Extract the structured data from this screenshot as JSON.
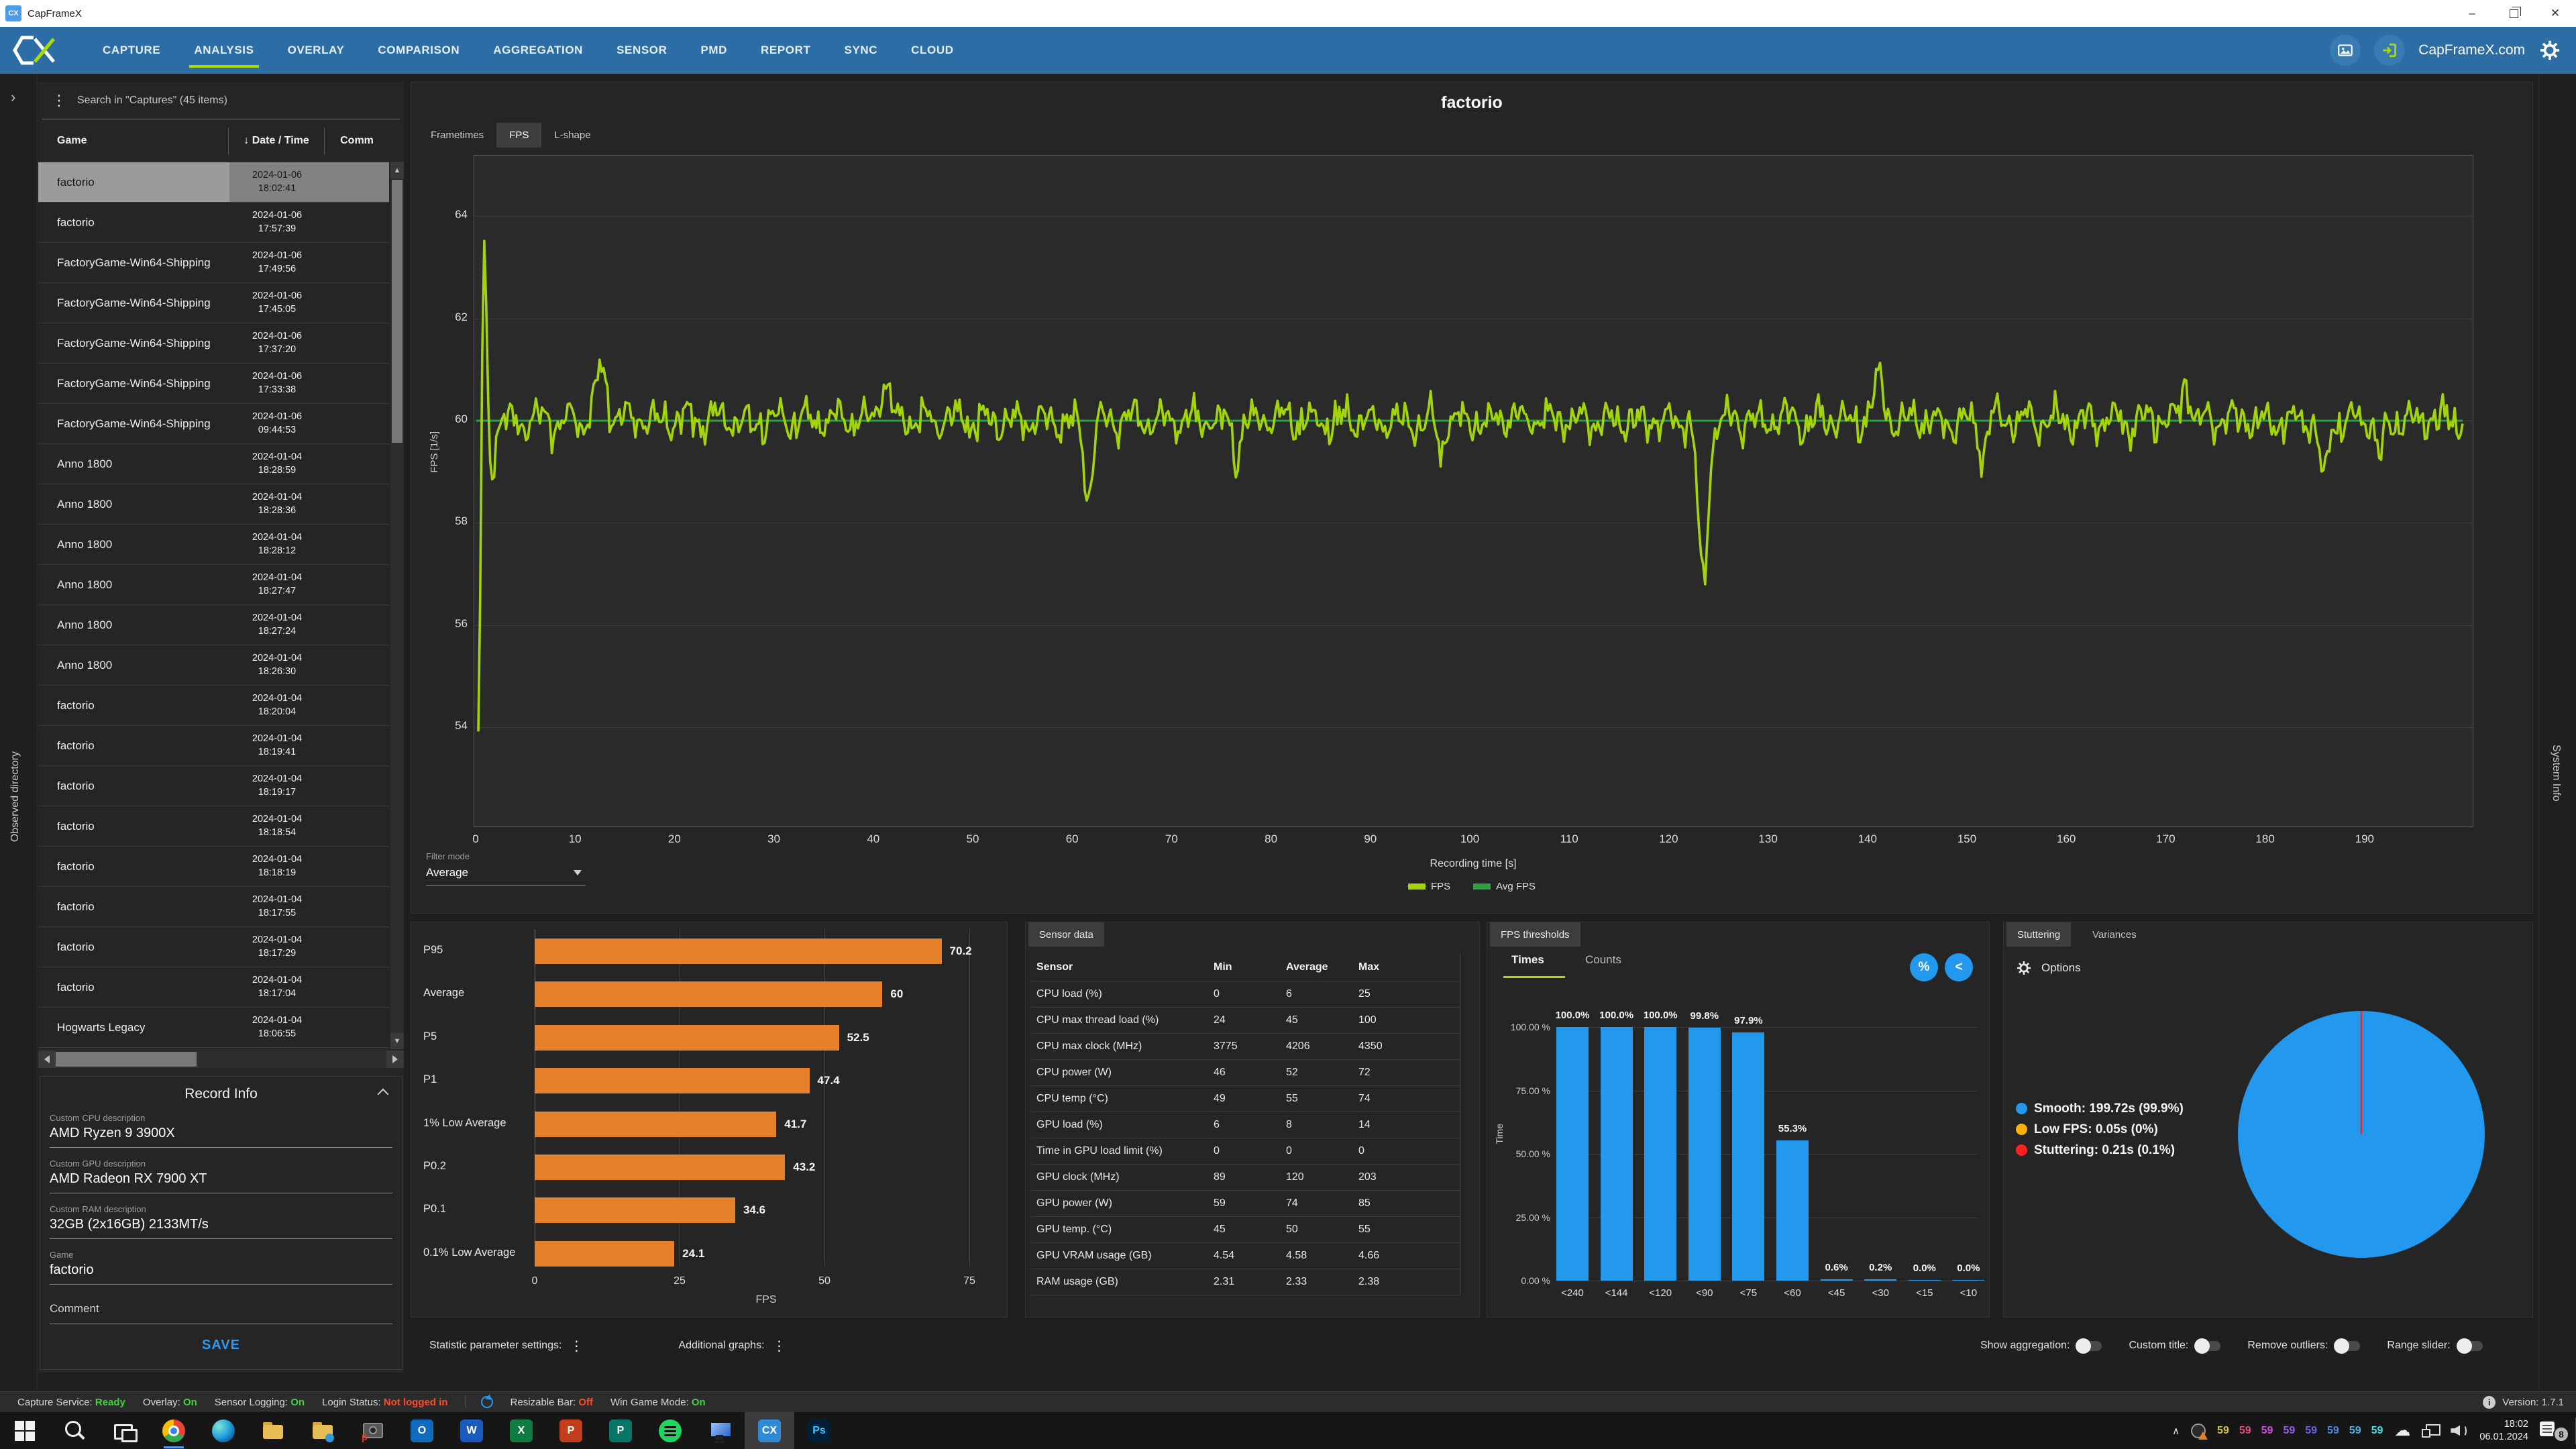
{
  "colors": {
    "nav_blue": "#2b6da4",
    "accent_lime": "#aadb00",
    "fps_line": "#a2d408",
    "avg_line": "#2f9e44",
    "bar_orange": "#e5802b",
    "bar_blue": "#2298ef",
    "status_green": "#43d33f",
    "status_red": "#ff4b2b"
  },
  "window": {
    "title": "CapFrameX"
  },
  "nav": {
    "tabs": [
      "CAPTURE",
      "ANALYSIS",
      "OVERLAY",
      "COMPARISON",
      "AGGREGATION",
      "SENSOR",
      "PMD",
      "REPORT",
      "SYNC",
      "CLOUD"
    ],
    "active_tab": "ANALYSIS",
    "site_label": "CapFrameX.com"
  },
  "left_strip": {
    "label": "Observed directory"
  },
  "right_strip": {
    "label": "System Info"
  },
  "sidebar": {
    "search_label": "Search in \"Captures\" (45 items)",
    "columns": {
      "game": "Game",
      "sort_arrow": "↓",
      "datetime": "Date / Time",
      "comment": "Comm"
    },
    "rows": [
      {
        "game": "factorio",
        "date": "2024-01-06",
        "time": "18:02:41",
        "selected": true
      },
      {
        "game": "factorio",
        "date": "2024-01-06",
        "time": "17:57:39",
        "selected": false
      },
      {
        "game": "FactoryGame-Win64-Shipping",
        "date": "2024-01-06",
        "time": "17:49:56",
        "selected": false
      },
      {
        "game": "FactoryGame-Win64-Shipping",
        "date": "2024-01-06",
        "time": "17:45:05",
        "selected": false
      },
      {
        "game": "FactoryGame-Win64-Shipping",
        "date": "2024-01-06",
        "time": "17:37:20",
        "selected": false
      },
      {
        "game": "FactoryGame-Win64-Shipping",
        "date": "2024-01-06",
        "time": "17:33:38",
        "selected": false
      },
      {
        "game": "FactoryGame-Win64-Shipping",
        "date": "2024-01-06",
        "time": "09:44:53",
        "selected": false
      },
      {
        "game": "Anno 1800",
        "date": "2024-01-04",
        "time": "18:28:59",
        "selected": false
      },
      {
        "game": "Anno 1800",
        "date": "2024-01-04",
        "time": "18:28:36",
        "selected": false
      },
      {
        "game": "Anno 1800",
        "date": "2024-01-04",
        "time": "18:28:12",
        "selected": false
      },
      {
        "game": "Anno 1800",
        "date": "2024-01-04",
        "time": "18:27:47",
        "selected": false
      },
      {
        "game": "Anno 1800",
        "date": "2024-01-04",
        "time": "18:27:24",
        "selected": false
      },
      {
        "game": "Anno 1800",
        "date": "2024-01-04",
        "time": "18:26:30",
        "selected": false
      },
      {
        "game": "factorio",
        "date": "2024-01-04",
        "time": "18:20:04",
        "selected": false
      },
      {
        "game": "factorio",
        "date": "2024-01-04",
        "time": "18:19:41",
        "selected": false
      },
      {
        "game": "factorio",
        "date": "2024-01-04",
        "time": "18:19:17",
        "selected": false
      },
      {
        "game": "factorio",
        "date": "2024-01-04",
        "time": "18:18:54",
        "selected": false
      },
      {
        "game": "factorio",
        "date": "2024-01-04",
        "time": "18:18:19",
        "selected": false
      },
      {
        "game": "factorio",
        "date": "2024-01-04",
        "time": "18:17:55",
        "selected": false
      },
      {
        "game": "factorio",
        "date": "2024-01-04",
        "time": "18:17:29",
        "selected": false
      },
      {
        "game": "factorio",
        "date": "2024-01-04",
        "time": "18:17:04",
        "selected": false
      },
      {
        "game": "Hogwarts Legacy",
        "date": "2024-01-04",
        "time": "18:06:55",
        "selected": false
      }
    ],
    "record_info": {
      "title": "Record Info",
      "fields": [
        {
          "label": "Custom CPU description",
          "value": "AMD Ryzen 9 3900X"
        },
        {
          "label": "Custom GPU description",
          "value": "AMD Radeon RX 7900 XT"
        },
        {
          "label": "Custom RAM description",
          "value": "32GB (2x16GB) 2133MT/s"
        },
        {
          "label": "Game",
          "value": "factorio"
        }
      ],
      "comment_label": "Comment",
      "save_label": "SAVE"
    }
  },
  "analysis": {
    "title": "factorio",
    "chart_tabs": [
      "Frametimes",
      "FPS",
      "L-shape"
    ],
    "active_chart_tab": "FPS",
    "filter": {
      "label": "Filter mode",
      "value": "Average"
    },
    "settings": {
      "statistic": "Statistic parameter settings:",
      "additional": "Additional graphs:"
    },
    "toggles": [
      {
        "label": "Show aggregation:",
        "on": false
      },
      {
        "label": "Custom title:",
        "on": false
      },
      {
        "label": "Remove outliers:",
        "on": false
      },
      {
        "label": "Range slider:",
        "on": false
      }
    ]
  },
  "sensor_panel": {
    "tab": "Sensor data",
    "headers": [
      "Sensor",
      "Min",
      "Average",
      "Max"
    ],
    "rows": [
      [
        "CPU load (%)",
        "0",
        "6",
        "25"
      ],
      [
        "CPU max thread load (%)",
        "24",
        "45",
        "100"
      ],
      [
        "CPU max clock (MHz)",
        "3775",
        "4206",
        "4350"
      ],
      [
        "CPU power (W)",
        "46",
        "52",
        "72"
      ],
      [
        "CPU temp (°C)",
        "49",
        "55",
        "74"
      ],
      [
        "GPU load (%)",
        "6",
        "8",
        "14"
      ],
      [
        "Time in GPU load limit (%)",
        "0",
        "0",
        "0"
      ],
      [
        "GPU clock (MHz)",
        "89",
        "120",
        "203"
      ],
      [
        "GPU power (W)",
        "59",
        "74",
        "85"
      ],
      [
        "GPU temp. (°C)",
        "45",
        "50",
        "55"
      ],
      [
        "GPU VRAM usage (GB)",
        "4.54",
        "4.58",
        "4.66"
      ],
      [
        "RAM usage (GB)",
        "2.31",
        "2.33",
        "2.38"
      ]
    ]
  },
  "thresholds_panel": {
    "tab": "FPS thresholds",
    "tabs": [
      "Times",
      "Counts"
    ],
    "active": "Times",
    "pct_button": "%",
    "share_button": "<"
  },
  "stutter_panel": {
    "tabs": [
      "Stuttering",
      "Variances"
    ],
    "active": "Stuttering",
    "options_label": "Options"
  },
  "chart_data": [
    {
      "id": "fps_over_time",
      "type": "line",
      "title": "factorio",
      "xlabel": "Recording time [s]",
      "ylabel": "FPS [1/s]",
      "x_ticks": [
        0,
        10,
        20,
        30,
        40,
        50,
        60,
        70,
        80,
        90,
        100,
        110,
        120,
        130,
        140,
        150,
        160,
        170,
        180,
        190
      ],
      "y_ticks": [
        54,
        56,
        58,
        60,
        62,
        64
      ],
      "x_range": [
        0,
        201
      ],
      "y_range": [
        52.03,
        65.185
      ],
      "duration_s": 199.8,
      "avg_fps": 60,
      "noise_amp": 0.28,
      "series": [
        {
          "name": "FPS",
          "color": "#a2d408"
        },
        {
          "name": "Avg FPS",
          "color": "#2f9e44"
        }
      ],
      "anomalies": [
        {
          "t": 0.2,
          "fps": 53.6,
          "w": 0.22
        },
        {
          "t": 0.8,
          "fps": 63.5,
          "w": 0.25
        },
        {
          "t": 1.5,
          "fps": 59.1,
          "w": 0.35
        },
        {
          "t": 12.5,
          "fps": 60.9,
          "w": 0.6
        },
        {
          "t": 41,
          "fps": 60.7,
          "w": 0.5
        },
        {
          "t": 61.5,
          "fps": 58.5,
          "w": 0.4
        },
        {
          "t": 76.5,
          "fps": 59.2,
          "w": 0.3
        },
        {
          "t": 97,
          "fps": 59.3,
          "w": 0.35
        },
        {
          "t": 123.4,
          "fps": 56.85,
          "w": 0.5
        },
        {
          "t": 141,
          "fps": 60.8,
          "w": 0.5
        },
        {
          "t": 151.5,
          "fps": 59.2,
          "w": 0.3
        },
        {
          "t": 172,
          "fps": 60.7,
          "w": 0.4
        },
        {
          "t": 185.8,
          "fps": 58.7,
          "w": 0.4
        },
        {
          "t": 191.5,
          "fps": 59.15,
          "w": 0.3
        }
      ],
      "grid": "horizontal",
      "legend_position": "bottom-center"
    },
    {
      "id": "fps_percentiles",
      "type": "bar",
      "orientation": "horizontal",
      "categories": [
        "P95",
        "Average",
        "P5",
        "P1",
        "1% Low Average",
        "P0.2",
        "P0.1",
        "0.1% Low Average"
      ],
      "values": [
        70.2,
        60,
        52.5,
        47.4,
        41.7,
        43.2,
        34.6,
        24.1
      ],
      "value_labels": [
        "70.2",
        "60",
        "52.5",
        "47.4",
        "41.7",
        "43.2",
        "34.6",
        "24.1"
      ],
      "xlabel": "FPS",
      "x_ticks": [
        0,
        25,
        50,
        75
      ],
      "xlim": [
        0,
        77
      ],
      "color": "#e5802b"
    },
    {
      "id": "fps_thresholds",
      "type": "bar",
      "categories": [
        "<240",
        "<144",
        "<120",
        "<90",
        "<75",
        "<60",
        "<45",
        "<30",
        "<15",
        "<10"
      ],
      "values": [
        100.0,
        100.0,
        100.0,
        99.8,
        97.9,
        55.3,
        0.6,
        0.2,
        0.0,
        0.0
      ],
      "value_labels": [
        "100.0%",
        "100.0%",
        "100.0%",
        "99.8%",
        "97.9%",
        "55.3%",
        "0.6%",
        "0.2%",
        "0.0%",
        "0.0%"
      ],
      "ylabel": "Time",
      "y_tick_labels": [
        "0.00 %",
        "25.00 %",
        "50.00 %",
        "75.00 %",
        "100.00 %"
      ],
      "ylim": [
        0,
        100
      ],
      "color": "#2298ef"
    },
    {
      "id": "stuttering_pie",
      "type": "pie",
      "slices": [
        {
          "name": "Smooth",
          "seconds": 199.72,
          "percent": 99.9,
          "color": "#2298ef"
        },
        {
          "name": "Low FPS",
          "seconds": 0.05,
          "percent": 0,
          "color": "#ffb300"
        },
        {
          "name": "Stuttering",
          "seconds": 0.21,
          "percent": 0.1,
          "color": "#ff2020"
        }
      ],
      "legend": [
        "Smooth:  199.72s (99.9%)",
        "Low FPS:  0.05s (0%)",
        "Stuttering:  0.21s (0.1%)"
      ]
    }
  ],
  "status_bar": {
    "items": [
      {
        "label": "Capture Service:",
        "value": "Ready",
        "color": "#43d33f"
      },
      {
        "label": "Overlay:",
        "value": "On",
        "color": "#43d33f"
      },
      {
        "label": "Sensor Logging:",
        "value": "On",
        "color": "#43d33f"
      },
      {
        "label": "Login Status:",
        "value": "Not logged in",
        "color": "#ff4b2b"
      }
    ],
    "items2": [
      {
        "label": "Resizable Bar:",
        "value": "Off",
        "color": "#ff4b2b"
      },
      {
        "label": "Win Game Mode:",
        "value": "On",
        "color": "#43d33f"
      }
    ],
    "version_label": "Version: 1.7.1"
  },
  "taskbar": {
    "slots": [
      "start",
      "search",
      "taskview",
      "chrome",
      "edge",
      "folder",
      "folder-blue",
      "screenshot",
      "outlook",
      "word",
      "excel",
      "powerpoint",
      "publisher",
      "spotify",
      "monitor",
      "capframex",
      "photoshop"
    ],
    "running_slot": "chrome",
    "active_slot": "capframex",
    "tray": {
      "numbers": [
        {
          "text": "59",
          "color": "#d3c54b"
        },
        {
          "text": "59",
          "color": "#e0507c"
        },
        {
          "text": "59",
          "color": "#d14fe0"
        },
        {
          "text": "59",
          "color": "#9d5ce8"
        },
        {
          "text": "59",
          "color": "#6d62e8"
        },
        {
          "text": "59",
          "color": "#4f86e8"
        },
        {
          "text": "59",
          "color": "#4fb2e8"
        },
        {
          "text": "59",
          "color": "#4fe0db"
        }
      ],
      "clock_time": "18:02",
      "clock_date": "06.01.2024",
      "notification_count": "8"
    }
  }
}
